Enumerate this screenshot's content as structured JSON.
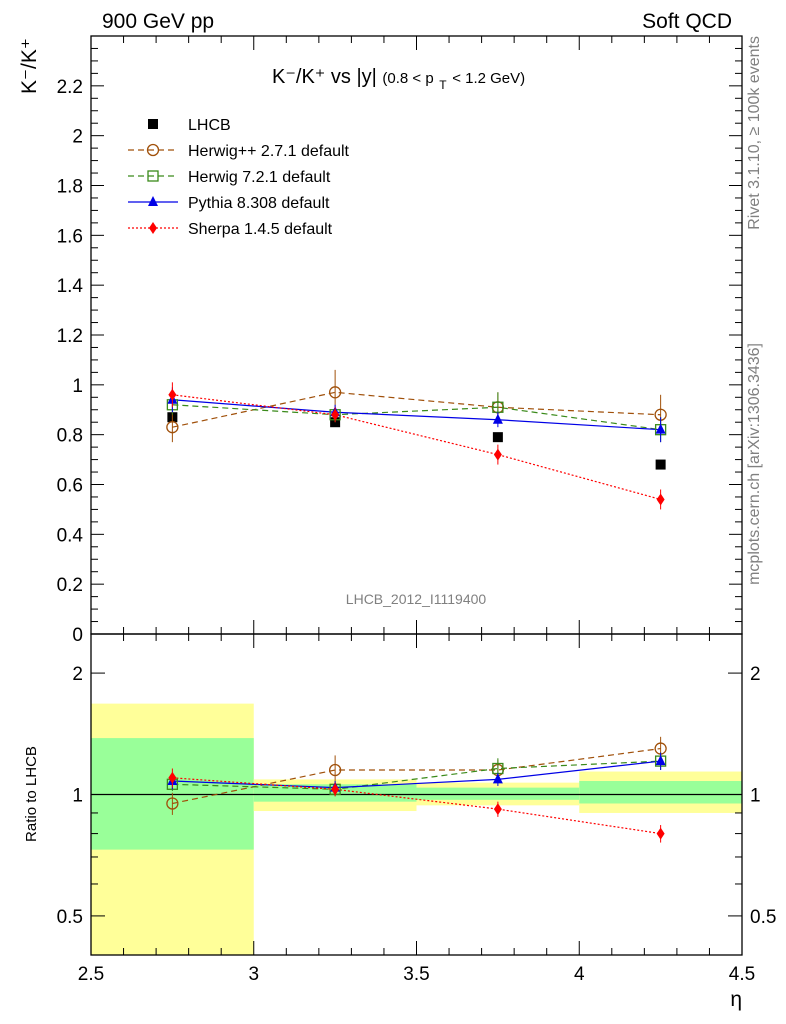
{
  "header": {
    "left": "900 GeV pp",
    "right": "Soft QCD"
  },
  "side": {
    "rivet": "Rivet 3.1.10, ≥ 100k events",
    "mcplots": "mcplots.cern.ch [arXiv:1306.3436]"
  },
  "chart_data": {
    "type": "scatter",
    "title_main": "K⁻/K⁺ vs |y|",
    "title_range": "(0.8 < p",
    "title_sub": "T",
    "title_unit": " < 1.2 GeV)",
    "ylabel": "K⁻/K⁺",
    "ylabel_ratio": "Ratio to LHCB",
    "xlabel": "η",
    "watermark": "LHCB_2012_I1119400",
    "xlim": [
      2.5,
      4.5
    ],
    "ylim": [
      0,
      2.4
    ],
    "ratio_ylim_log": [
      0.4,
      2.5
    ],
    "x_ticks": [
      2.5,
      3,
      3.5,
      4,
      4.5
    ],
    "x_tick_labels": [
      "2.5",
      "3",
      "3.5",
      "4",
      "4.5"
    ],
    "y_ticks": [
      0,
      0.2,
      0.4,
      0.6,
      0.8,
      1,
      1.2,
      1.4,
      1.6,
      1.8,
      2,
      2.2
    ],
    "y_tick_labels": [
      "0",
      "0.2",
      "0.4",
      "0.6",
      "0.8",
      "1",
      "1.2",
      "1.4",
      "1.6",
      "1.8",
      "2",
      "2.2"
    ],
    "ratio_ticks": [
      0.5,
      1,
      2
    ],
    "ratio_tick_labels": [
      "0.5",
      "1",
      "2"
    ],
    "bins": [
      {
        "lo": 2.5,
        "hi": 3.0,
        "x": 2.75,
        "value": 0.87,
        "band_stat": [
          0.73,
          1.38
        ],
        "band_tot": [
          0.4,
          1.68
        ]
      },
      {
        "lo": 3.0,
        "hi": 3.5,
        "x": 3.25,
        "value": 0.85,
        "band_stat": [
          0.96,
          1.06
        ],
        "band_tot": [
          0.91,
          1.09
        ]
      },
      {
        "lo": 3.5,
        "hi": 4.0,
        "x": 3.75,
        "value": 0.79,
        "band_stat": [
          0.97,
          1.04
        ],
        "band_tot": [
          0.94,
          1.07
        ]
      },
      {
        "lo": 4.0,
        "hi": 4.5,
        "x": 4.25,
        "value": 0.68,
        "band_stat": [
          0.95,
          1.08
        ],
        "band_tot": [
          0.9,
          1.14
        ]
      }
    ],
    "series": [
      {
        "name": "LHCB",
        "marker": "square-filled",
        "color": "#000000",
        "line": "none",
        "x": [
          2.75,
          3.25,
          3.75,
          4.25
        ],
        "y": [
          0.87,
          0.85,
          0.79,
          0.68
        ],
        "ratio": [
          1.0,
          1.0,
          1.0,
          1.0
        ]
      },
      {
        "name": "Herwig++ 2.7.1 default",
        "marker": "circle-open",
        "color": "#a0500a",
        "line": "dashed",
        "x": [
          2.75,
          3.25,
          3.75,
          4.25
        ],
        "y": [
          0.83,
          0.97,
          0.91,
          0.88
        ],
        "err": [
          0.06,
          0.09,
          0.06,
          0.08
        ],
        "ratio": [
          0.95,
          1.15,
          1.15,
          1.3
        ],
        "ratio_err": [
          0.06,
          0.1,
          0.07,
          0.09
        ]
      },
      {
        "name": "Herwig 7.2.1 default",
        "marker": "square-open",
        "color": "#3a8a1a",
        "line": "dashed",
        "x": [
          2.75,
          3.25,
          3.75,
          4.25
        ],
        "y": [
          0.92,
          0.88,
          0.91,
          0.82
        ],
        "err": [
          0.04,
          0.03,
          0.06,
          0.05
        ],
        "ratio": [
          1.06,
          1.03,
          1.16,
          1.21
        ],
        "ratio_err": [
          0.04,
          0.04,
          0.07,
          0.06
        ]
      },
      {
        "name": "Pythia 8.308 default",
        "marker": "triangle-filled",
        "color": "#0000e6",
        "line": "solid",
        "x": [
          2.75,
          3.25,
          3.75,
          4.25
        ],
        "y": [
          0.94,
          0.89,
          0.86,
          0.82
        ],
        "err": [
          0.05,
          0.03,
          0.03,
          0.05
        ],
        "ratio": [
          1.08,
          1.04,
          1.09,
          1.21
        ],
        "ratio_err": [
          0.05,
          0.04,
          0.04,
          0.06
        ]
      },
      {
        "name": "Sherpa 1.4.5 default",
        "marker": "diamond-filled",
        "color": "#ff0000",
        "line": "dotted",
        "x": [
          2.75,
          3.25,
          3.75,
          4.25
        ],
        "y": [
          0.96,
          0.88,
          0.72,
          0.54
        ],
        "err": [
          0.05,
          0.03,
          0.04,
          0.04
        ],
        "ratio": [
          1.1,
          1.03,
          0.92,
          0.8
        ],
        "ratio_err": [
          0.06,
          0.04,
          0.04,
          0.04
        ]
      }
    ]
  }
}
